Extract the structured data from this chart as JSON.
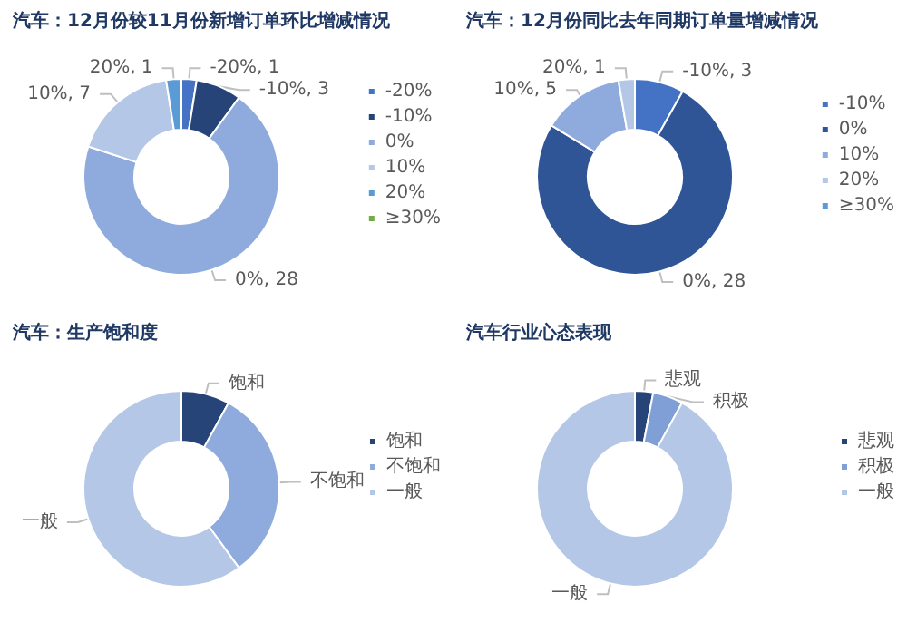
{
  "chart_data": [
    {
      "type": "donut",
      "title": "汽车：12月份较11月份新增订单环比增减情况",
      "categories": [
        "-20%",
        "-10%",
        "0%",
        "10%",
        "20%",
        "≥30%"
      ],
      "values": [
        1,
        3,
        28,
        7,
        1,
        0
      ],
      "colors": [
        "#4472c4",
        "#264478",
        "#8faadc",
        "#b4c7e7",
        "#5b9bd5",
        "#70ad47"
      ],
      "value_labels": [
        "-20%, 1",
        "-10%, 3",
        "0%, 28",
        "10%, 7",
        "20%, 1",
        null
      ],
      "legend": "right"
    },
    {
      "type": "donut",
      "title": "汽车：12月份同比去年同期订单量增减情况",
      "categories": [
        "-10%",
        "0%",
        "10%",
        "20%",
        "≥30%"
      ],
      "values": [
        3,
        28,
        5,
        1,
        0
      ],
      "colors": [
        "#4472c4",
        "#2f5597",
        "#8faadc",
        "#b4c7e7",
        "#5b9bd5"
      ],
      "value_labels": [
        "-10%, 3",
        "0%, 28",
        "10%, 5",
        "20%, 1",
        null
      ],
      "legend": "right"
    },
    {
      "type": "donut",
      "title": "汽车：生产饱和度",
      "categories": [
        "饱和",
        "不饱和",
        "一般"
      ],
      "values": [
        8,
        32,
        60
      ],
      "colors": [
        "#264478",
        "#8faadc",
        "#b4c7e7"
      ],
      "legend": "right"
    },
    {
      "type": "donut",
      "title": "汽车行业心态表现",
      "categories": [
        "悲观",
        "积极",
        "一般"
      ],
      "values": [
        3,
        5,
        92
      ],
      "colors": [
        "#264478",
        "#7f9fd6",
        "#b4c7e7"
      ],
      "legend": "right"
    }
  ]
}
